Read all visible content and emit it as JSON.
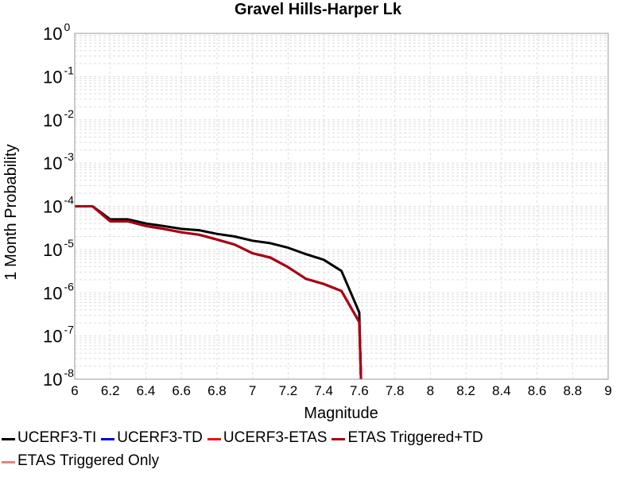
{
  "chart_data": {
    "type": "line",
    "title": "Gravel Hills-Harper Lk",
    "xlabel": "Magnitude",
    "ylabel": "1 Month Probability",
    "xlim": [
      6,
      9
    ],
    "ylim_exponent": [
      -8,
      0
    ],
    "y_scale": "log",
    "grid": true,
    "legend_position": "bottom",
    "x_ticks": [
      "6",
      "6.2",
      "6.4",
      "6.6",
      "6.8",
      "7",
      "7.2",
      "7.4",
      "7.6",
      "7.8",
      "8",
      "8.2",
      "8.4",
      "8.6",
      "8.8",
      "9"
    ],
    "y_ticks": [
      {
        "base": "10",
        "exp": "0",
        "value": 1
      },
      {
        "base": "10",
        "exp": "-1",
        "value": 0.1
      },
      {
        "base": "10",
        "exp": "-2",
        "value": 0.01
      },
      {
        "base": "10",
        "exp": "-3",
        "value": 0.001
      },
      {
        "base": "10",
        "exp": "-4",
        "value": 0.0001
      },
      {
        "base": "10",
        "exp": "-5",
        "value": 1e-05
      },
      {
        "base": "10",
        "exp": "-6",
        "value": 1e-06
      },
      {
        "base": "10",
        "exp": "-7",
        "value": 1e-07
      },
      {
        "base": "10",
        "exp": "-8",
        "value": 1e-08
      }
    ],
    "series": [
      {
        "name": "UCERF3-TI",
        "color": "#000000",
        "x": [
          6.0,
          6.1,
          6.2,
          6.3,
          6.4,
          6.5,
          6.6,
          6.7,
          6.8,
          6.9,
          7.0,
          7.1,
          7.2,
          7.3,
          7.4,
          7.5,
          7.6,
          7.61
        ],
        "y": [
          0.0001,
          0.0001,
          5e-05,
          5e-05,
          4e-05,
          3.5e-05,
          3e-05,
          2.8e-05,
          2.3e-05,
          2e-05,
          1.6e-05,
          1.4e-05,
          1.1e-05,
          7.8e-06,
          5.8e-06,
          3.2e-06,
          3.5e-07,
          5e-09
        ]
      },
      {
        "name": "UCERF3-TD",
        "color": "#0000dd",
        "x": [
          6.0,
          6.1,
          6.2,
          6.3,
          6.4,
          6.5,
          6.6,
          6.7,
          6.8,
          6.9,
          7.0,
          7.1,
          7.2,
          7.3,
          7.4,
          7.5,
          7.6,
          7.61
        ],
        "y": [
          0.0001,
          0.0001,
          4.5e-05,
          4.5e-05,
          3.5e-05,
          3e-05,
          2.5e-05,
          2.2e-05,
          1.7e-05,
          1.3e-05,
          8.2e-06,
          6.5e-06,
          3.9e-06,
          2.1e-06,
          1.6e-06,
          1.1e-06,
          2.1e-07,
          5e-09
        ]
      },
      {
        "name": "UCERF3-ETAS",
        "color": "#ee1111",
        "x": [
          6.0,
          6.1,
          6.2,
          6.3,
          6.4,
          6.5,
          6.6,
          6.7,
          6.8,
          6.9,
          7.0,
          7.1,
          7.2,
          7.3,
          7.4,
          7.5,
          7.6,
          7.61
        ],
        "y": [
          0.0001,
          0.0001,
          4.5e-05,
          4.5e-05,
          3.5e-05,
          3e-05,
          2.5e-05,
          2.2e-05,
          1.7e-05,
          1.3e-05,
          8.2e-06,
          6.5e-06,
          3.9e-06,
          2.1e-06,
          1.6e-06,
          1.1e-06,
          2.1e-07,
          5e-09
        ]
      },
      {
        "name": "ETAS Triggered+TD",
        "color": "#aa0011",
        "x": [
          6.0,
          6.1,
          6.2,
          6.3,
          6.4,
          6.5,
          6.6,
          6.7,
          6.8,
          6.9,
          7.0,
          7.1,
          7.2,
          7.3,
          7.4,
          7.5,
          7.6,
          7.61
        ],
        "y": [
          0.0001,
          0.0001,
          4.5e-05,
          4.5e-05,
          3.5e-05,
          3e-05,
          2.5e-05,
          2.2e-05,
          1.7e-05,
          1.3e-05,
          8.2e-06,
          6.5e-06,
          3.9e-06,
          2.1e-06,
          1.6e-06,
          1.1e-06,
          2.1e-07,
          5e-09
        ]
      },
      {
        "name": "ETAS Triggered Only",
        "color": "#f08080",
        "x": [],
        "y": []
      }
    ]
  },
  "legend_rows": [
    [
      0,
      1,
      2,
      3
    ],
    [
      4
    ]
  ]
}
